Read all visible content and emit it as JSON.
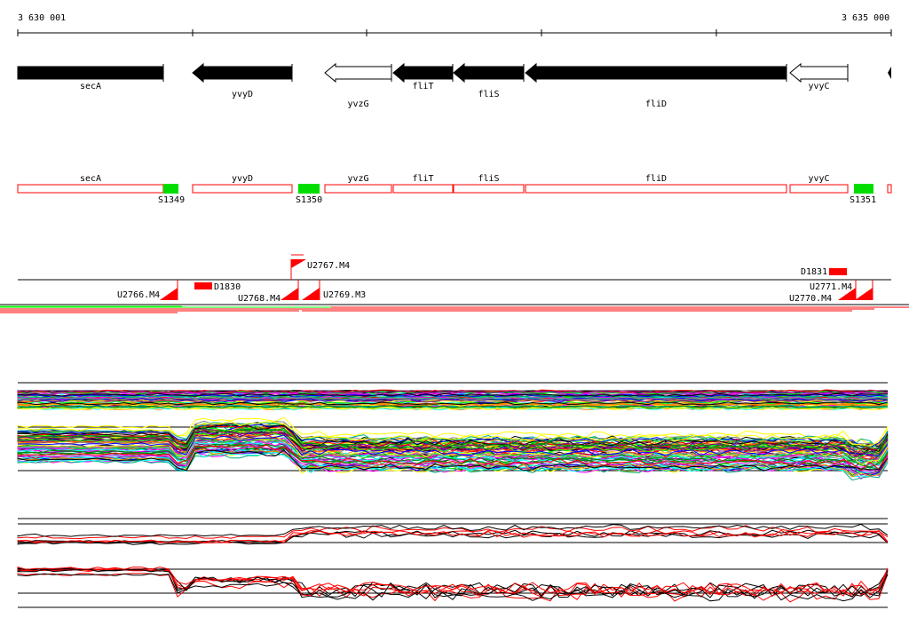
{
  "ruler": {
    "start_label": "3 630 001",
    "end_label": "3 635 000"
  },
  "genes": [
    {
      "name": "secA",
      "strand": "+",
      "filled": true
    },
    {
      "name": "yvyD",
      "strand": "-",
      "filled": true
    },
    {
      "name": "yvzG",
      "strand": "-",
      "filled": false
    },
    {
      "name": "fliT",
      "strand": "-",
      "filled": true
    },
    {
      "name": "fliS",
      "strand": "-",
      "filled": true
    },
    {
      "name": "fliD",
      "strand": "-",
      "filled": true
    },
    {
      "name": "yvyC",
      "strand": "-",
      "filled": false
    }
  ],
  "segments": [
    "S1349",
    "S1350",
    "S1351"
  ],
  "features": [
    "U2766.M4",
    "D1830",
    "U2768.M4",
    "U2769.M3",
    "U2767.M4",
    "D1831",
    "U2770.M4",
    "U2771.M4"
  ],
  "colors": {
    "feature": "#ff0000",
    "segment": "#00dd00",
    "gene": "#000000"
  }
}
